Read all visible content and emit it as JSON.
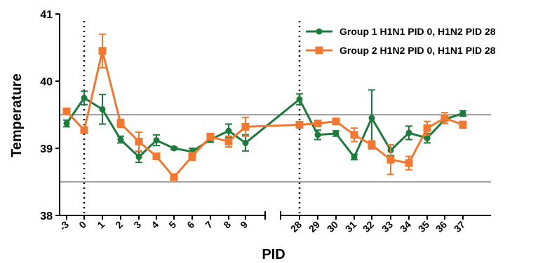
{
  "chart_data": {
    "type": "line",
    "xlabel": "PID",
    "ylabel": "Temperature",
    "ylim": [
      38,
      41
    ],
    "yticks": [
      "38",
      "39",
      "40",
      "41"
    ],
    "categories": [
      "-3",
      "0",
      "1",
      "2",
      "3",
      "4",
      "5",
      "6",
      "7",
      "8",
      "9",
      "28",
      "29",
      "30",
      "31",
      "32",
      "33",
      "34",
      "35",
      "36",
      "37"
    ],
    "axis_break_after": "9",
    "vertical_reference_lines": [
      "0",
      "28"
    ],
    "horizontal_reference_lines": [
      38.5,
      39.5
    ],
    "grid": false,
    "legend_position": "top-right",
    "series": [
      {
        "name": "Group 1 H1N1 PID 0, H1N2 PID 28",
        "color": "#1e7a3c",
        "marker": "circle",
        "values": [
          39.37,
          39.75,
          39.58,
          39.13,
          38.87,
          39.12,
          39.0,
          38.95,
          39.13,
          39.26,
          39.08,
          39.73,
          39.2,
          39.22,
          38.87,
          39.45,
          38.97,
          39.23,
          39.15,
          39.43,
          39.52
        ],
        "errors": [
          0.05,
          0.1,
          0.22,
          0.05,
          0.08,
          0.08,
          0.02,
          0.05,
          0.04,
          0.1,
          0.12,
          0.08,
          0.07,
          0.04,
          0.04,
          0.42,
          0.08,
          0.1,
          0.07,
          0.06,
          0.04
        ]
      },
      {
        "name": "Group 2 H1N2 PID 0, H1N1 PID 28",
        "color": "#f07830",
        "marker": "square",
        "values": [
          39.55,
          39.27,
          40.45,
          39.37,
          39.1,
          38.88,
          38.57,
          38.88,
          39.17,
          39.1,
          39.32,
          39.35,
          39.37,
          39.4,
          39.2,
          39.05,
          38.83,
          38.78,
          39.3,
          39.45,
          39.35
        ],
        "errors": [
          0.04,
          0.04,
          0.25,
          0.06,
          0.14,
          0.04,
          0.04,
          0.06,
          0.05,
          0.08,
          0.14,
          0.03,
          0.03,
          0.03,
          0.1,
          0.06,
          0.22,
          0.1,
          0.1,
          0.08,
          0.05
        ]
      }
    ]
  }
}
